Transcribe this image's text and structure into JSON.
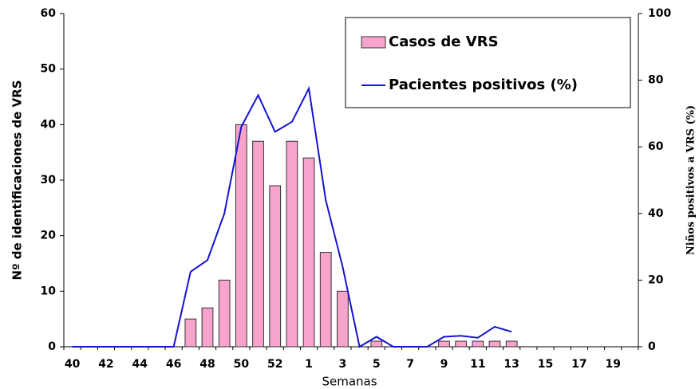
{
  "chart_data": {
    "type": "bar-line",
    "x_label": "Semanas",
    "y_label": "Nº de identificaciones de VRS",
    "y2_label": "Niños positivos a VRS (%)",
    "categories": [
      "40",
      null,
      "42",
      null,
      "44",
      null,
      "46",
      null,
      "48",
      null,
      "50",
      null,
      "52",
      null,
      "1",
      null,
      "3",
      null,
      "5",
      null,
      "7",
      null,
      "9",
      null,
      "11",
      null,
      "13",
      null,
      "15",
      null,
      "17",
      null,
      "19",
      null
    ],
    "series": [
      {
        "name": "Casos de VRS",
        "type": "bar",
        "color": "#f7a3cc",
        "values": [
          0,
          0,
          0,
          0,
          0,
          0,
          0,
          5,
          7,
          12,
          40,
          37,
          29,
          37,
          34,
          17,
          10,
          0,
          1,
          0,
          0,
          0,
          1,
          1,
          1,
          1,
          1,
          null,
          null,
          null,
          null,
          null,
          null,
          null
        ]
      },
      {
        "name": "Pacientes positivos (%)",
        "type": "line",
        "axis": "y2",
        "color": "#1414d2",
        "values": [
          0,
          0,
          0,
          0,
          0,
          0,
          0,
          22.5,
          26,
          40,
          66,
          75.5,
          64.5,
          67.5,
          77.5,
          44,
          24,
          0,
          3,
          0,
          0,
          0,
          3,
          3.3,
          2.7,
          6,
          4.5,
          null,
          null,
          null,
          null,
          null,
          null,
          null
        ]
      }
    ],
    "ylim": [
      0,
      60
    ],
    "yticks": [
      0,
      10,
      20,
      30,
      40,
      50,
      60
    ],
    "y2lim": [
      0,
      100
    ],
    "y2ticks": [
      0,
      20,
      40,
      60,
      80,
      100
    ]
  }
}
